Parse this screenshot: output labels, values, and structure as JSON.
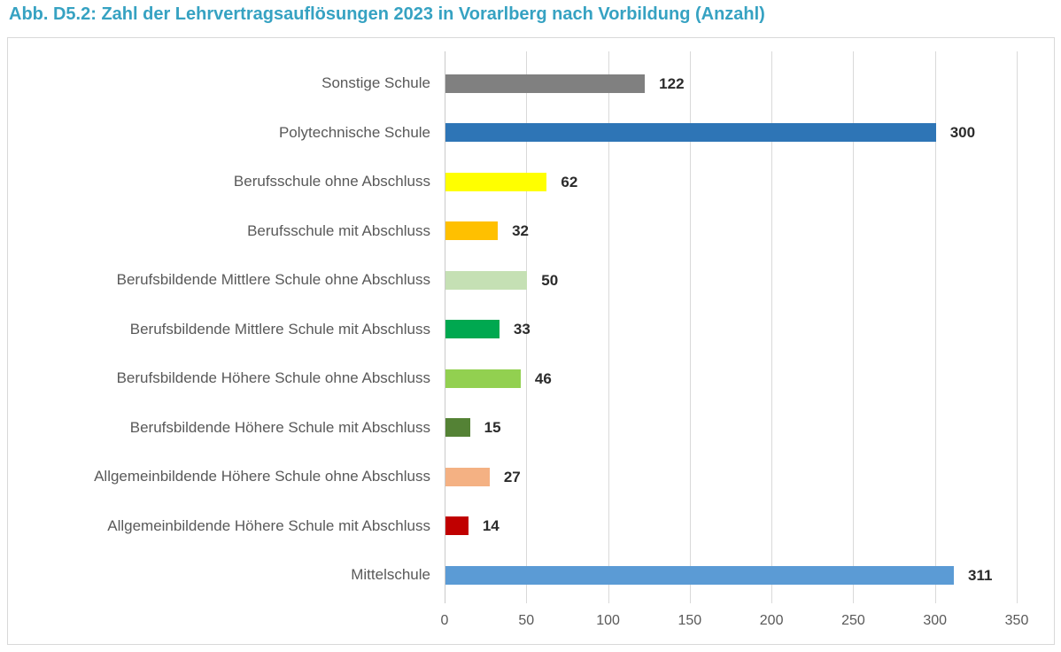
{
  "page": {
    "title": "Abb. D5.2: Zahl der Lehrvertragsauflösungen 2023 in Vorarlberg nach Vorbildung (Anzahl)"
  },
  "chart_data": {
    "type": "bar",
    "orientation": "horizontal",
    "title": "Abb. D5.2: Zahl der Lehrvertragsauflösungen 2023 in Vorarlberg nach Vorbildung (Anzahl)",
    "categories": [
      "Sonstige Schule",
      "Polytechnische Schule",
      "Berufsschule ohne Abschluss",
      "Berufsschule mit Abschluss",
      "Berufsbildende Mittlere Schule ohne Abschluss",
      "Berufsbildende Mittlere Schule mit Abschluss",
      "Berufsbildende Höhere Schule ohne Abschluss",
      "Berufsbildende Höhere Schule mit Abschluss",
      "Allgemeinbildende Höhere Schule ohne Abschluss",
      "Allgemeinbildende Höhere Schule mit Abschluss",
      "Mittelschule"
    ],
    "values": [
      122,
      300,
      62,
      32,
      50,
      33,
      46,
      15,
      27,
      14,
      311
    ],
    "bar_colors": [
      "#808080",
      "#2E75B6",
      "#FFFF00",
      "#FFC000",
      "#C5E0B4",
      "#00A850",
      "#92D050",
      "#548235",
      "#F4B183",
      "#C00000",
      "#5B9BD5"
    ],
    "value_labels": [
      "122",
      "300",
      "62",
      "32",
      "50",
      "33",
      "46",
      "15",
      "27",
      "14",
      "311"
    ],
    "x_tick_labels": [
      "0",
      "50",
      "100",
      "150",
      "200",
      "250",
      "300",
      "350"
    ],
    "x_ticks": [
      0,
      50,
      100,
      150,
      200,
      250,
      300,
      350
    ],
    "xlim": [
      0,
      350
    ],
    "xlabel": "",
    "ylabel": "",
    "grid": "vertical-only",
    "legend": "none",
    "colors": {
      "title_text": "#36A2C2",
      "category_text": "#595959",
      "value_text": "#2b2b2b",
      "tick_text": "#595959",
      "gridline": "#D9D9D9",
      "frame_border": "#D9D9D9",
      "background": "#FFFFFF"
    }
  }
}
